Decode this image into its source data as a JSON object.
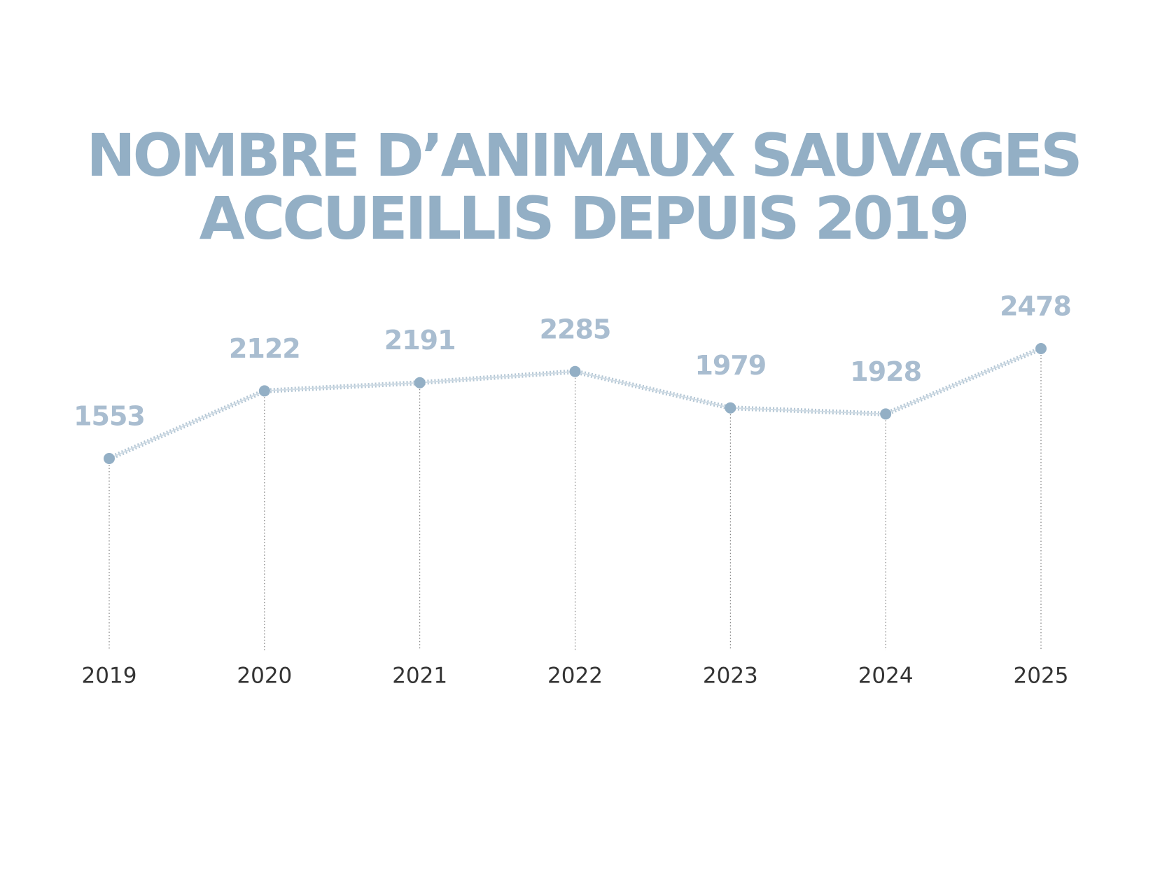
{
  "chart_data": {
    "type": "line",
    "title": [
      "NOMBRE D’ANIMAUX SAUVAGES",
      "ACCUEILLIS DEPUIS 2019"
    ],
    "categories": [
      "2019",
      "2020",
      "2021",
      "2022",
      "2023",
      "2024",
      "2025"
    ],
    "values": [
      1553,
      2122,
      2191,
      2285,
      1979,
      1928,
      2478
    ],
    "color": "#93afc5"
  }
}
